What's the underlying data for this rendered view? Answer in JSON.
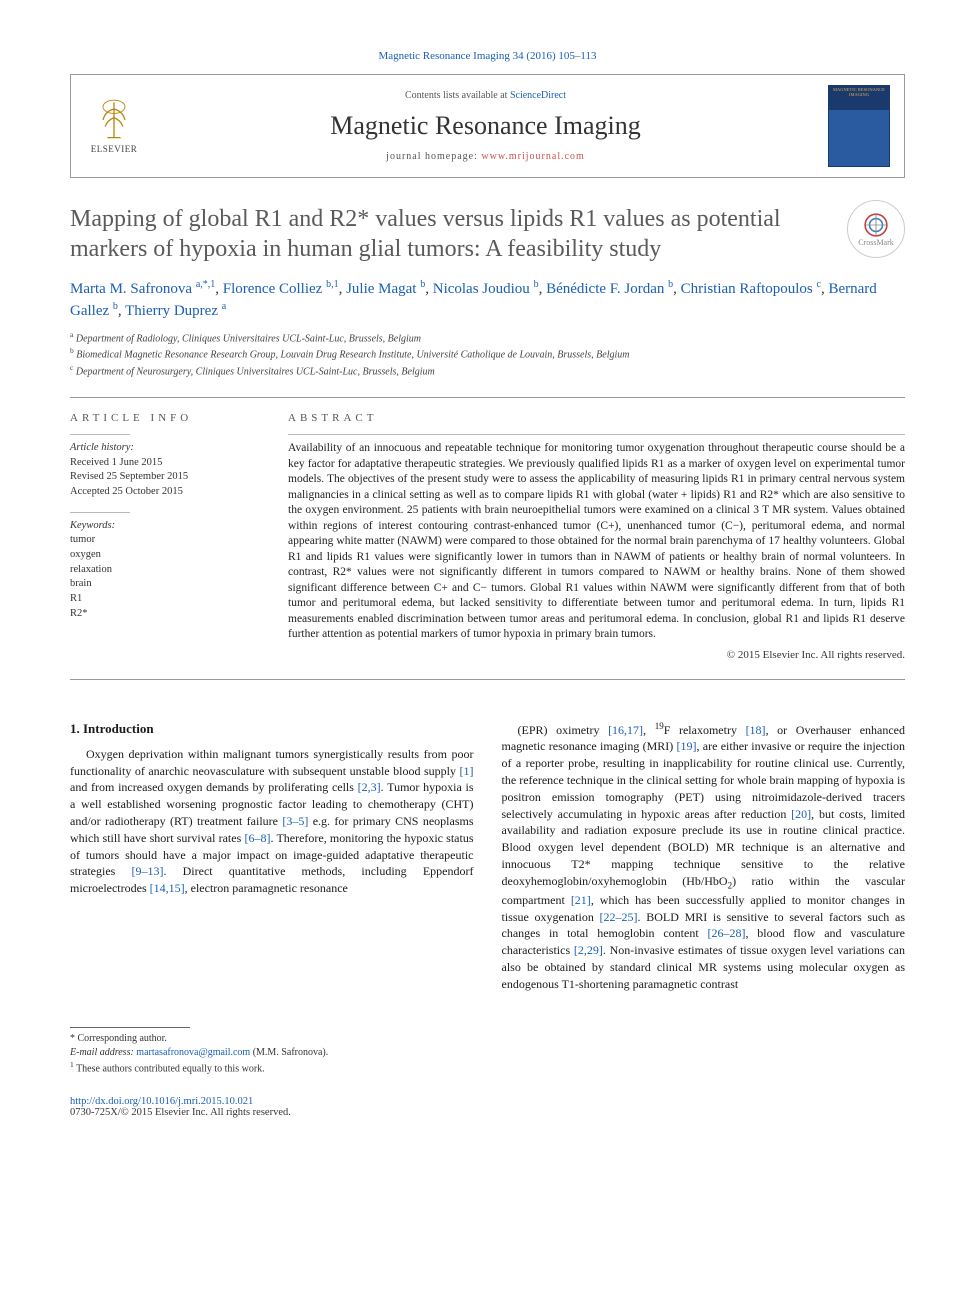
{
  "citation": {
    "prefix": "Magnetic Resonance Imaging 34 (2016) 105–113",
    "link_journal": "Magnetic Resonance Imaging"
  },
  "header": {
    "contents_text": "Contents lists available at ",
    "contents_link": "ScienceDirect",
    "journal_name": "Magnetic Resonance Imaging",
    "homepage_label": "journal homepage: ",
    "homepage_url": "www.mrijournal.com",
    "elsevier": "ELSEVIER",
    "cover_label": "MAGNETIC RESONANCE IMAGING"
  },
  "crossmark": "CrossMark",
  "title": "Mapping of global R1 and R2* values versus lipids R1 values as potential markers of hypoxia in human glial tumors: A feasibility study",
  "authors_html": "Marta M. Safronova <sup>a,*,1</sup>, Florence Colliez <sup>b,1</sup>, Julie Magat <sup>b</sup>, Nicolas Joudiou <sup>b</sup>, Bénédicte F. Jordan <sup>b</sup>, Christian Raftopoulos <sup>c</sup>, Bernard Gallez <sup>b</sup>, Thierry Duprez <sup>a</sup>",
  "authors": [
    {
      "name": "Marta M. Safronova",
      "sup": "a,*,1"
    },
    {
      "name": "Florence Colliez",
      "sup": "b,1"
    },
    {
      "name": "Julie Magat",
      "sup": "b"
    },
    {
      "name": "Nicolas Joudiou",
      "sup": "b"
    },
    {
      "name": "Bénédicte F. Jordan",
      "sup": "b"
    },
    {
      "name": "Christian Raftopoulos",
      "sup": "c"
    },
    {
      "name": "Bernard Gallez",
      "sup": "b"
    },
    {
      "name": "Thierry Duprez",
      "sup": "a"
    }
  ],
  "affiliations": [
    {
      "sup": "a",
      "text": "Department of Radiology, Cliniques Universitaires UCL-Saint-Luc, Brussels, Belgium"
    },
    {
      "sup": "b",
      "text": "Biomedical Magnetic Resonance Research Group, Louvain Drug Research Institute, Université Catholique de Louvain, Brussels, Belgium"
    },
    {
      "sup": "c",
      "text": "Department of Neurosurgery, Cliniques Universitaires UCL-Saint-Luc, Brussels, Belgium"
    }
  ],
  "article_info": {
    "heading": "ARTICLE INFO",
    "history_label": "Article history:",
    "history": [
      "Received 1 June 2015",
      "Revised 25 September 2015",
      "Accepted 25 October 2015"
    ],
    "keywords_label": "Keywords:",
    "keywords": [
      "tumor",
      "oxygen",
      "relaxation",
      "brain",
      "R1",
      "R2*"
    ]
  },
  "abstract": {
    "heading": "ABSTRACT",
    "text": "Availability of an innocuous and repeatable technique for monitoring tumor oxygenation throughout therapeutic course should be a key factor for adaptative therapeutic strategies. We previously qualified lipids R1 as a marker of oxygen level on experimental tumor models. The objectives of the present study were to assess the applicability of measuring lipids R1 in primary central nervous system malignancies in a clinical setting as well as to compare lipids R1 with global (water + lipids) R1 and R2* which are also sensitive to the oxygen environment. 25 patients with brain neuroepithelial tumors were examined on a clinical 3 T MR system. Values obtained within regions of interest contouring contrast-enhanced tumor (C+), unenhanced tumor (C−), peritumoral edema, and normal appearing white matter (NAWM) were compared to those obtained for the normal brain parenchyma of 17 healthy volunteers. Global R1 and lipids R1 values were significantly lower in tumors than in NAWM of patients or healthy brain of normal volunteers. In contrast, R2* values were not significantly different in tumors compared to NAWM or healthy brains. None of them showed significant difference between C+ and C− tumors. Global R1 values within NAWM were significantly different from that of both tumor and peritumoral edema, but lacked sensitivity to differentiate between tumor and peritumoral edema. In turn, lipids R1 measurements enabled discrimination between tumor areas and peritumoral edema. In conclusion, global R1 and lipids R1 deserve further attention as potential markers of tumor hypoxia in primary brain tumors.",
    "copyright": "© 2015 Elsevier Inc. All rights reserved."
  },
  "body": {
    "section_title": "1. Introduction",
    "col1": "Oxygen deprivation within malignant tumors synergistically results from poor functionality of anarchic neovasculature with subsequent unstable blood supply [1] and from increased oxygen demands by proliferating cells [2,3]. Tumor hypoxia is a well established worsening prognostic factor leading to chemotherapy (CHT) and/or radiotherapy (RT) treatment failure [3–5] e.g. for primary CNS neoplasms which still have short survival rates [6–8]. Therefore, monitoring the hypoxic status of tumors should have a major impact on image-guided adaptative therapeutic strategies [9–13]. Direct quantitative methods, including Eppendorf microelectrodes [14,15], electron paramagnetic resonance",
    "col2": "(EPR) oximetry [16,17], 19F relaxometry [18], or Overhauser enhanced magnetic resonance imaging (MRI) [19], are either invasive or require the injection of a reporter probe, resulting in inapplicability for routine clinical use. Currently, the reference technique in the clinical setting for whole brain mapping of hypoxia is positron emission tomography (PET) using nitroimidazole-derived tracers selectively accumulating in hypoxic areas after reduction [20], but costs, limited availability and radiation exposure preclude its use in routine clinical practice. Blood oxygen level dependent (BOLD) MR technique is an alternative and innocuous T2* mapping technique sensitive to the relative deoxyhemoglobin/oxyhemoglobin (Hb/HbO2) ratio within the vascular compartment [21], which has been successfully applied to monitor changes in tissue oxygenation [22–25]. BOLD MRI is sensitive to several factors such as changes in total hemoglobin content [26–28], blood flow and vasculature characteristics [2,29]. Non-invasive estimates of tissue oxygen level variations can also be obtained by standard clinical MR systems using molecular oxygen as endogenous T1-shortening paramagnetic contrast",
    "refs_col1": [
      "[1]",
      "[2,3]",
      "[3–5]",
      "[6–8]",
      "[9–13]",
      "[14,15]"
    ],
    "refs_col2": [
      "[16,17]",
      "[18]",
      "[19]",
      "[20]",
      "[21]",
      "[22–25]",
      "[26–28]",
      "[2,29]"
    ]
  },
  "footer": {
    "corr": "* Corresponding author.",
    "email_label": "E-mail address: ",
    "email": "martasafronova@gmail.com",
    "email_owner": " (M.M. Safronova).",
    "note1": "1 These authors contributed equally to this work.",
    "doi_url": "http://dx.doi.org/10.1016/j.mri.2015.10.021",
    "issn_line": "0730-725X/© 2015 Elsevier Inc. All rights reserved."
  },
  "colors": {
    "link": "#1a5fb4",
    "link_alt": "#d05050",
    "heading_gray": "#5a5a5a",
    "rule": "#999999"
  }
}
